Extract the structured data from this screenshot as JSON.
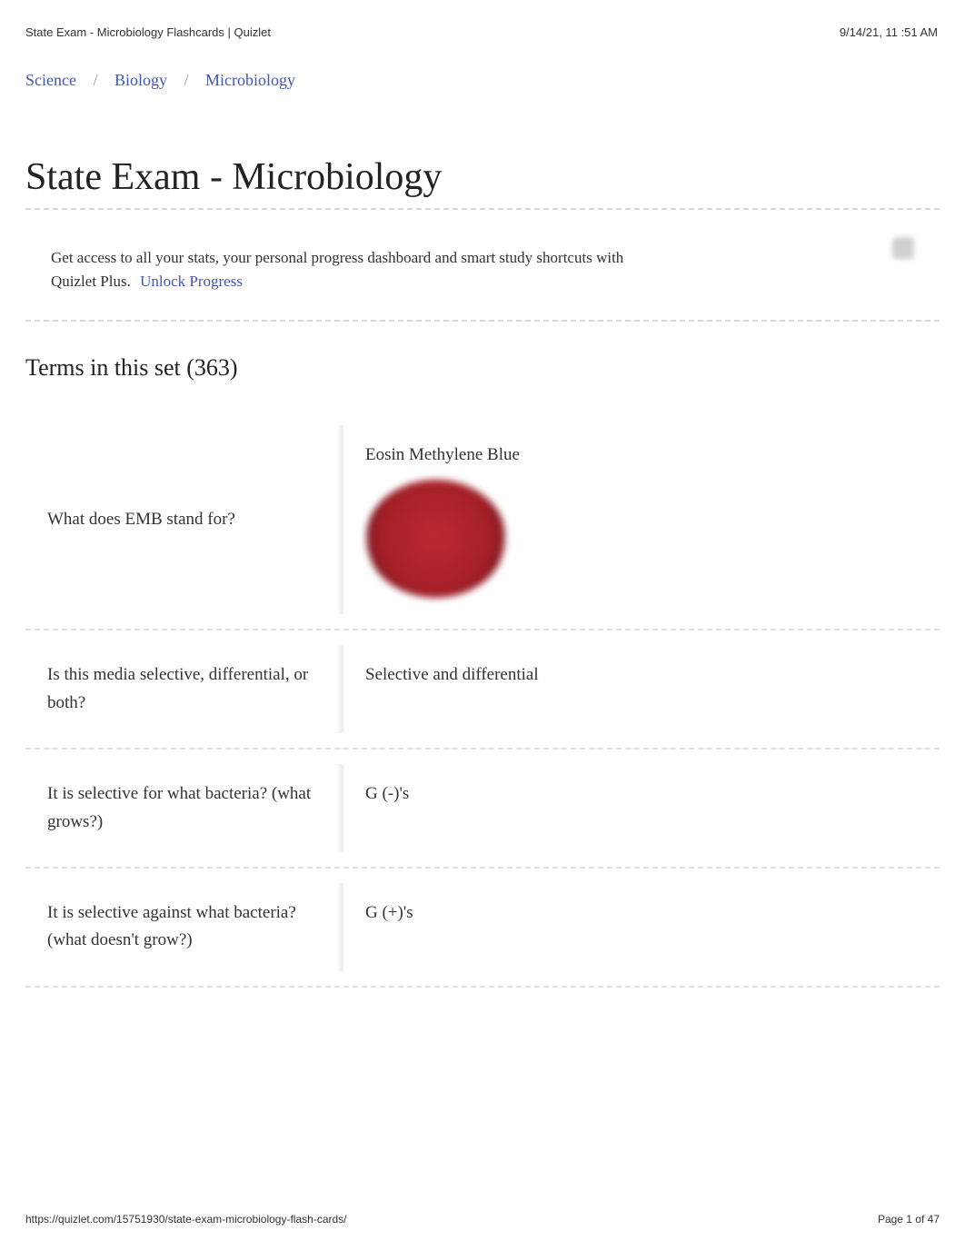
{
  "header": {
    "left": "State Exam - Microbiology Flashcards | Quizlet",
    "right": "9/14/21, 11 :51 AM"
  },
  "breadcrumb": {
    "items": [
      "Science",
      "Biology",
      "Microbiology"
    ],
    "separator": "/"
  },
  "title": "State Exam - Microbiology",
  "promo": {
    "text": "Get access to all your stats, your personal progress dashboard and smart study shortcuts with Quizlet Plus.",
    "link_label": "Unlock Progress"
  },
  "terms_heading": "Terms in this set (363)",
  "cards": [
    {
      "q": "What does EMB stand for?",
      "a": "Eosin Methylene Blue",
      "has_image": true
    },
    {
      "q": "Is this media selective, differential, or both?",
      "a": "Selective and differential",
      "has_image": false
    },
    {
      "q": "It is selective for what bacteria? (what grows?)",
      "a": "G (-)'s",
      "has_image": false
    },
    {
      "q": "It is selective against what bacteria? (what doesn't grow?)",
      "a": "G (+)'s",
      "has_image": false
    }
  ],
  "footer": {
    "url": "https://quizlet.com/15751930/state-exam-microbiology-flash-cards/",
    "page": "Page 1 of 47"
  },
  "colors": {
    "link": "#4257b2",
    "text": "#333333",
    "dash": "#d8d8d8",
    "dish": "#a51f28"
  }
}
